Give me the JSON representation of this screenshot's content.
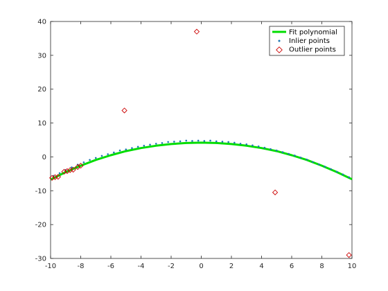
{
  "colors": {
    "fit": "#00dd00",
    "inlier": "#1f77b4",
    "outlier": "#cc0000",
    "axis": "#262626"
  },
  "legend": {
    "placement": "top-right",
    "entries": [
      "Fit polynomial",
      "Inlier points",
      "Outlier points"
    ]
  },
  "chart_data": {
    "type": "scatter",
    "title": "",
    "xlabel": "",
    "ylabel": "",
    "xlim": [
      -10,
      10
    ],
    "ylim": [
      -30,
      40
    ],
    "xticks": [
      -10,
      -8,
      -6,
      -4,
      -2,
      0,
      2,
      4,
      6,
      8,
      10
    ],
    "yticks": [
      -30,
      -20,
      -10,
      0,
      10,
      20,
      30,
      40
    ],
    "grid": false,
    "series": [
      {
        "name": "Fit polynomial",
        "kind": "line",
        "x": [
          -10,
          -9,
          -8,
          -7,
          -6,
          -5,
          -4,
          -3,
          -2,
          -1,
          0,
          1,
          2,
          3,
          4,
          5,
          6,
          7,
          8,
          9,
          10
        ],
        "y": [
          -6.7,
          -4.5,
          -2.6,
          -0.9,
          0.5,
          1.7,
          2.6,
          3.3,
          3.8,
          4.1,
          4.2,
          4.1,
          3.8,
          3.3,
          2.6,
          1.7,
          0.5,
          -0.9,
          -2.6,
          -4.5,
          -6.6
        ]
      },
      {
        "name": "Inlier points",
        "kind": "scatter",
        "x": [
          -9.8,
          -9.4,
          -9.0,
          -8.6,
          -8.2,
          -7.8,
          -7.4,
          -7.0,
          -6.6,
          -6.2,
          -5.8,
          -5.4,
          -5.0,
          -4.6,
          -4.2,
          -3.8,
          -3.4,
          -3.0,
          -2.6,
          -2.2,
          -1.8,
          -1.4,
          -1.0,
          -0.6,
          -0.2,
          0.2,
          0.6,
          1.0,
          1.4,
          1.8,
          2.2,
          2.6,
          3.0,
          3.4,
          3.8,
          4.2,
          4.6,
          5.0,
          5.4,
          5.8,
          6.2,
          6.6,
          7.0,
          7.4,
          7.8,
          8.2,
          8.6,
          9.0,
          9.4,
          9.8
        ],
        "y": [
          -5.6,
          -4.8,
          -3.9,
          -3.1,
          -2.3,
          -1.6,
          -0.9,
          -0.3,
          0.3,
          0.8,
          1.3,
          1.9,
          2.2,
          2.6,
          3.0,
          3.3,
          3.6,
          3.9,
          4.1,
          4.4,
          4.5,
          4.6,
          4.8,
          4.7,
          4.8,
          4.7,
          4.8,
          4.6,
          4.5,
          4.4,
          4.2,
          3.9,
          3.7,
          3.4,
          3.1,
          2.7,
          2.3,
          1.9,
          1.4,
          0.9,
          0.4,
          -0.2,
          -0.8,
          -1.5,
          -2.2,
          -2.9,
          -3.6,
          -4.4,
          -5.2,
          -6.0
        ]
      },
      {
        "name": "Outlier points",
        "kind": "scatter",
        "x": [
          -9.9,
          -9.7,
          -9.5,
          -9.1,
          -8.9,
          -8.7,
          -8.5,
          -8.2,
          -8.0,
          -5.1,
          -0.3,
          4.9,
          9.8
        ],
        "y": [
          -6.2,
          -6.0,
          -5.9,
          -4.4,
          -4.2,
          -3.9,
          -3.8,
          -3.0,
          -2.6,
          13.7,
          37.0,
          -10.5,
          -29.0
        ]
      }
    ]
  }
}
